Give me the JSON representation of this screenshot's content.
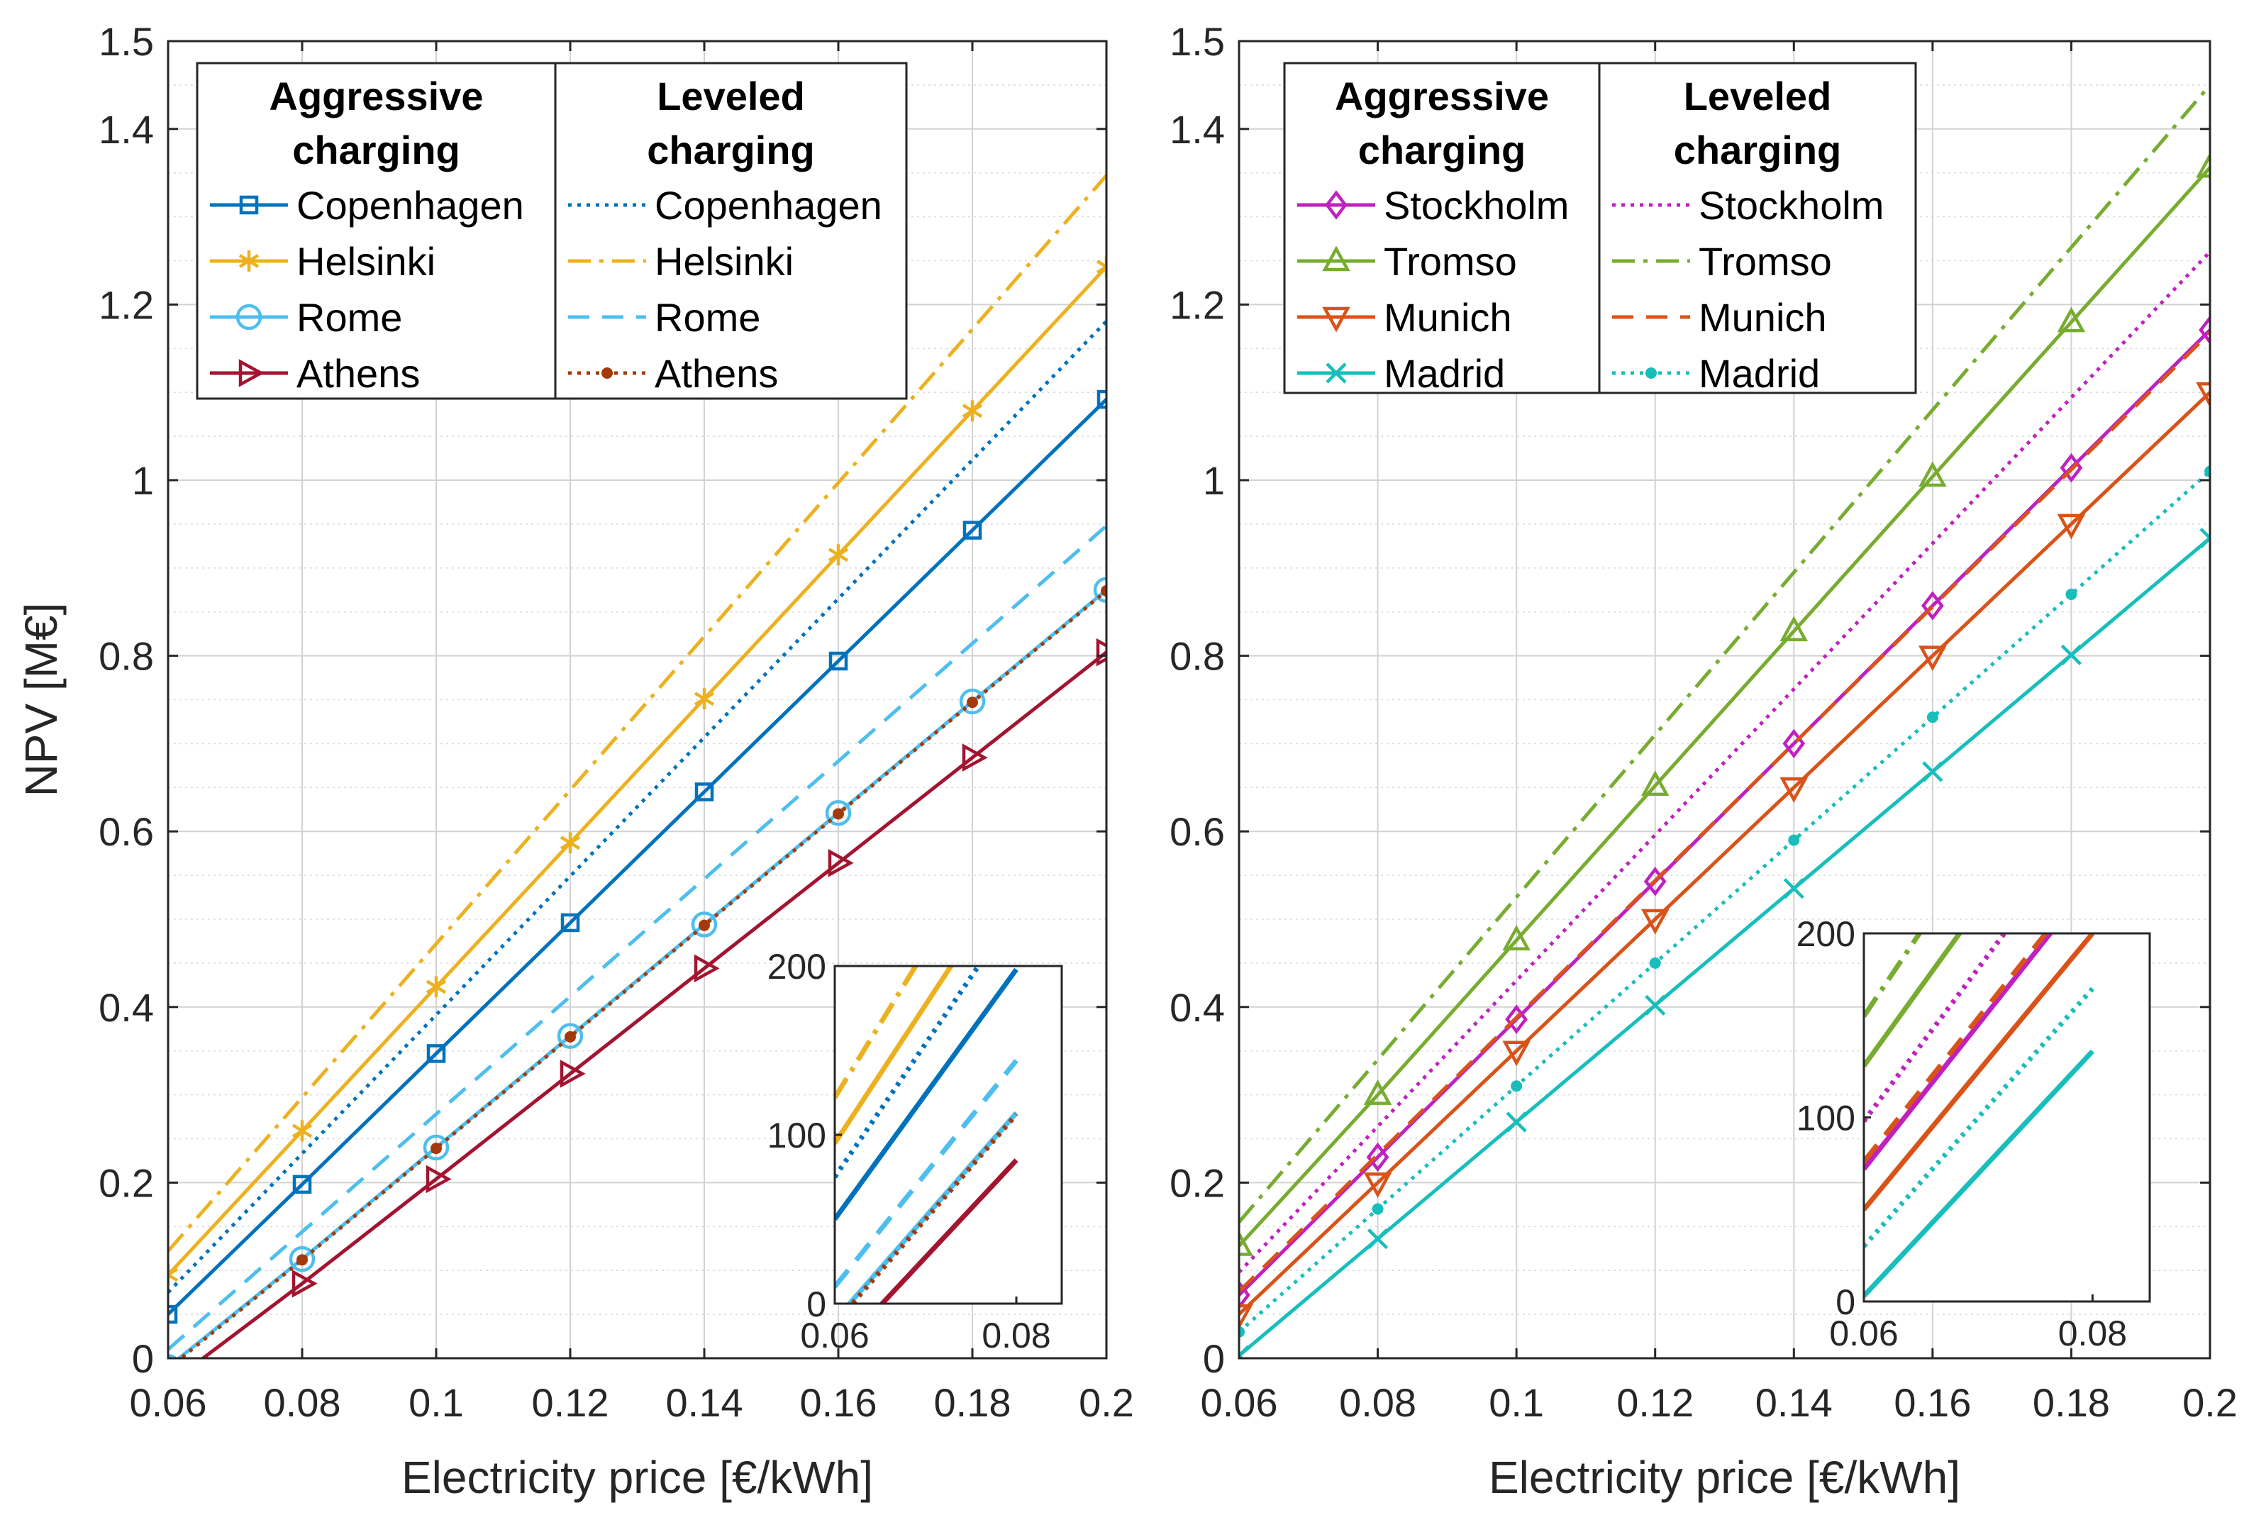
{
  "chart_data": [
    {
      "type": "line",
      "xlabel": "Electricity price [€/kWh]",
      "ylabel": "NPV [M€]",
      "xlim": [
        0.06,
        0.2
      ],
      "ylim": [
        0,
        1.5
      ],
      "xticks": [
        0.06,
        0.08,
        0.1,
        0.12,
        0.14,
        0.16,
        0.18,
        0.2
      ],
      "xtick_labels": [
        "0.06",
        "0.08",
        "0.1",
        "0.12",
        "0.14",
        "0.16",
        "0.18",
        "0.2"
      ],
      "yticks": [
        0,
        0.2,
        0.4,
        0.6,
        0.8,
        1,
        1.2,
        1.4,
        1.5
      ],
      "ytick_labels": [
        "0",
        "0.2",
        "0.4",
        "0.6",
        "0.8",
        "1",
        "1.2",
        "1.4",
        "1.5"
      ],
      "grid": true,
      "legend": {
        "placement": "top-left",
        "headers": [
          "Aggressive charging",
          "Leveled charging"
        ],
        "aggressive_names": [
          "Copenhagen",
          "Helsinki",
          "Rome",
          "Athens"
        ],
        "leveled_names": [
          "Copenhagen",
          "Helsinki",
          "Rome",
          "Athens"
        ]
      },
      "x": [
        0.06,
        0.08,
        0.1,
        0.12,
        0.14,
        0.16,
        0.18,
        0.2
      ],
      "series": [
        {
          "name": "Copenhagen",
          "group": "Aggressive charging",
          "color": "#0072BD",
          "line": "solid",
          "marker": "square",
          "values": [
            0.05,
            0.198,
            0.347,
            0.496,
            0.645,
            0.794,
            0.943,
            1.092
          ]
        },
        {
          "name": "Helsinki",
          "group": "Aggressive charging",
          "color": "#EDB120",
          "line": "solid",
          "marker": "asterisk",
          "values": [
            0.095,
            0.259,
            0.423,
            0.587,
            0.751,
            0.915,
            1.079,
            1.243
          ]
        },
        {
          "name": "Rome",
          "group": "Aggressive charging",
          "color": "#4DBEEE",
          "line": "solid",
          "marker": "circle",
          "values": [
            -0.01,
            0.113,
            0.24,
            0.367,
            0.494,
            0.621,
            0.748,
            0.875
          ]
        },
        {
          "name": "Athens",
          "group": "Aggressive charging",
          "color": "#A2142F",
          "line": "solid",
          "marker": "triangle-right",
          "values": [
            -0.03,
            0.085,
            0.204,
            0.324,
            0.444,
            0.564,
            0.684,
            0.804
          ]
        },
        {
          "name": "Copenhagen",
          "group": "Leveled charging",
          "color": "#0072BD",
          "line": "dotted",
          "marker": "none",
          "values": [
            0.075,
            0.233,
            0.391,
            0.549,
            0.707,
            0.865,
            1.023,
            1.181
          ]
        },
        {
          "name": "Helsinki",
          "group": "Leveled charging",
          "color": "#EDB120",
          "line": "dashdot",
          "marker": "none",
          "values": [
            0.122,
            0.297,
            0.472,
            0.647,
            0.822,
            0.997,
            1.172,
            1.347
          ]
        },
        {
          "name": "Rome",
          "group": "Leveled charging",
          "color": "#4DBEEE",
          "line": "dashed",
          "marker": "none",
          "values": [
            0.01,
            0.144,
            0.278,
            0.412,
            0.546,
            0.68,
            0.814,
            0.948
          ]
        },
        {
          "name": "Athens",
          "group": "Leveled charging",
          "color": "#A43A0C",
          "line": "dotted",
          "marker": "dot",
          "values": [
            -0.012,
            0.112,
            0.239,
            0.366,
            0.493,
            0.62,
            0.747,
            0.874
          ]
        }
      ],
      "inset": {
        "xlim": [
          0.06,
          0.085
        ],
        "ylim": [
          0,
          200
        ],
        "xtick_labels": [
          "0.06",
          "0.08"
        ],
        "ytick_labels": [
          "0",
          "100",
          "200"
        ]
      }
    },
    {
      "type": "line",
      "xlabel": "Electricity price [€/kWh]",
      "ylabel": "",
      "xlim": [
        0.06,
        0.2
      ],
      "ylim": [
        0,
        1.5
      ],
      "xticks": [
        0.06,
        0.08,
        0.1,
        0.12,
        0.14,
        0.16,
        0.18,
        0.2
      ],
      "xtick_labels": [
        "0.06",
        "0.08",
        "0.1",
        "0.12",
        "0.14",
        "0.16",
        "0.18",
        "0.2"
      ],
      "yticks": [
        0,
        0.2,
        0.4,
        0.6,
        0.8,
        1,
        1.2,
        1.4,
        1.5
      ],
      "ytick_labels": [
        "0",
        "0.2",
        "0.4",
        "0.6",
        "0.8",
        "1",
        "1.2",
        "1.4",
        "1.5"
      ],
      "grid": true,
      "legend": {
        "placement": "top-left",
        "headers": [
          "Aggressive charging",
          "Leveled charging"
        ],
        "aggressive_names": [
          "Stockholm",
          "Tromso",
          "Munich",
          "Madrid"
        ],
        "leveled_names": [
          "Stockholm",
          "Tromso",
          "Munich",
          "Madrid"
        ]
      },
      "x": [
        0.06,
        0.08,
        0.1,
        0.12,
        0.14,
        0.16,
        0.18,
        0.2
      ],
      "series": [
        {
          "name": "Stockholm",
          "group": "Aggressive charging",
          "color": "#C020C0",
          "line": "solid",
          "marker": "diamond",
          "values": [
            0.072,
            0.229,
            0.386,
            0.543,
            0.7,
            0.857,
            1.014,
            1.171
          ]
        },
        {
          "name": "Tromso",
          "group": "Aggressive charging",
          "color": "#77AC30",
          "line": "solid",
          "marker": "triangle-up",
          "values": [
            0.128,
            0.3,
            0.476,
            0.652,
            0.828,
            1.004,
            1.18,
            1.356
          ]
        },
        {
          "name": "Munich",
          "group": "Aggressive charging",
          "color": "#D95319",
          "line": "solid",
          "marker": "triangle-down",
          "values": [
            0.05,
            0.2,
            0.35,
            0.5,
            0.65,
            0.8,
            0.95,
            1.1
          ]
        },
        {
          "name": "Madrid",
          "group": "Aggressive charging",
          "color": "#17BEBB",
          "line": "solid",
          "marker": "x",
          "values": [
            0.003,
            0.136,
            0.269,
            0.402,
            0.535,
            0.668,
            0.801,
            0.934
          ]
        },
        {
          "name": "Stockholm",
          "group": "Leveled charging",
          "color": "#C020C0",
          "line": "dotted",
          "marker": "none",
          "values": [
            0.098,
            0.264,
            0.43,
            0.596,
            0.762,
            0.928,
            1.094,
            1.26
          ]
        },
        {
          "name": "Tromso",
          "group": "Leveled charging",
          "color": "#77AC30",
          "line": "dashdot",
          "marker": "none",
          "values": [
            0.155,
            0.34,
            0.525,
            0.71,
            0.895,
            1.08,
            1.265,
            1.45
          ]
        },
        {
          "name": "Munich",
          "group": "Leveled charging",
          "color": "#D95319",
          "line": "dashed",
          "marker": "none",
          "values": [
            0.076,
            0.232,
            0.388,
            0.544,
            0.7,
            0.856,
            1.012,
            1.168
          ]
        },
        {
          "name": "Madrid",
          "group": "Leveled charging",
          "color": "#17BEBB",
          "line": "dotted",
          "marker": "dot",
          "values": [
            0.03,
            0.17,
            0.31,
            0.45,
            0.59,
            0.73,
            0.87,
            1.01
          ]
        }
      ],
      "inset": {
        "xlim": [
          0.06,
          0.085
        ],
        "ylim": [
          0,
          200
        ],
        "xtick_labels": [
          "0.06",
          "0.08"
        ],
        "ytick_labels": [
          "0",
          "100",
          "200"
        ]
      }
    }
  ]
}
